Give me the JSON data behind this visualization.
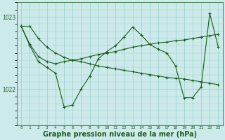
{
  "background_color": "#cceaea",
  "plot_bg_color": "#cceaea",
  "line_color": "#1a5c1a",
  "grid_color": "#99cccc",
  "xlabel": "Graphe pression niveau de la mer (hPa)",
  "xlabel_fontsize": 7,
  "xlim": [
    -0.5,
    23.5
  ],
  "ylim": [
    1021.5,
    1023.2
  ],
  "yticks": [
    1022,
    1023
  ],
  "hours": [
    0,
    1,
    2,
    3,
    4,
    5,
    6,
    7,
    8,
    9,
    10,
    11,
    12,
    13,
    14,
    15,
    16,
    17,
    18,
    19,
    20,
    21,
    22,
    23
  ],
  "line1_x": [
    0,
    1,
    2,
    3,
    4,
    5,
    6,
    7,
    8,
    9,
    10,
    11,
    12,
    13,
    14,
    15,
    16,
    17,
    18,
    19,
    20,
    21,
    22,
    23
  ],
  "line1_y": [
    1022.87,
    1022.87,
    1022.7,
    1022.58,
    1022.5,
    1022.44,
    1022.4,
    1022.38,
    1022.35,
    1022.32,
    1022.3,
    1022.28,
    1022.26,
    1022.24,
    1022.22,
    1022.2,
    1022.18,
    1022.16,
    1022.15,
    1022.14,
    1022.12,
    1022.1,
    1022.08,
    1022.06
  ],
  "line2_x": [
    0,
    1,
    2,
    3,
    4,
    5,
    6,
    7,
    8,
    9,
    10,
    11,
    12,
    13,
    14,
    15,
    16,
    17,
    18,
    19,
    20,
    21,
    22,
    23
  ],
  "line2_y": [
    1022.87,
    1022.62,
    1022.45,
    1022.38,
    1022.35,
    1022.38,
    1022.4,
    1022.42,
    1022.45,
    1022.48,
    1022.5,
    1022.52,
    1022.55,
    1022.58,
    1022.6,
    1022.62,
    1022.64,
    1022.65,
    1022.67,
    1022.68,
    1022.7,
    1022.72,
    1022.74,
    1022.76
  ],
  "line3_x": [
    0,
    1,
    2,
    3,
    4,
    5,
    6,
    7,
    8,
    9,
    10,
    11,
    12,
    13,
    14,
    15,
    16,
    17,
    18,
    19,
    20,
    21,
    22,
    23
  ],
  "line3_y": [
    1022.87,
    1022.6,
    1022.38,
    1022.3,
    1022.22,
    1021.75,
    1021.78,
    1022.0,
    1022.18,
    1022.42,
    1022.52,
    1022.6,
    1022.72,
    1022.86,
    1022.75,
    1022.62,
    1022.55,
    1022.5,
    1022.32,
    1021.88,
    1021.88,
    1022.03,
    1023.05,
    1022.58
  ],
  "marker_size": 3,
  "line_width": 0.8
}
